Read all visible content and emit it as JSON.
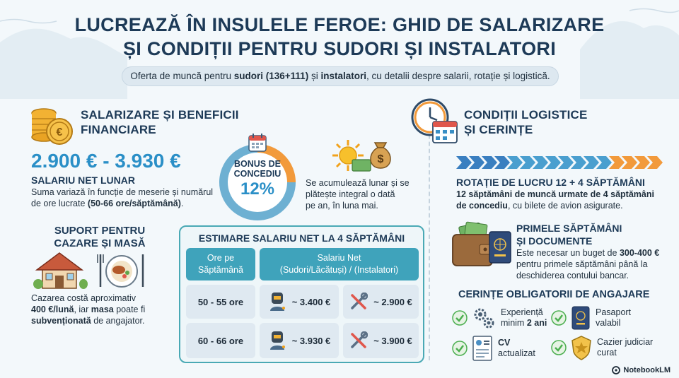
{
  "header": {
    "title_line1": "LUCREAZĂ ÎN INSULELE FEROE: GHID DE SALARIZARE",
    "title_line2": "ȘI CONDIȚII PENTRU SUDORI ȘI INSTALATORI",
    "subtitle_pre": "Oferta de muncă pentru ",
    "subtitle_b1": "sudori (136+111)",
    "subtitle_mid": " și ",
    "subtitle_b2": "instalatori",
    "subtitle_post": ", cu detalii despre salarii, rotație și logistică."
  },
  "salary": {
    "heading_line1": "SALARIZARE ȘI BENEFICII",
    "heading_line2": "FINANCIARE",
    "range": "2.900 € - 3.930 €",
    "label": "SALARIU NET LUNAR",
    "desc_line1": "Suma variază în funcție de meserie și numărul",
    "desc_line2_pre": "de ore lucrate ",
    "desc_line2_b": "(50-66 ore/săptămână)",
    "desc_line2_post": "."
  },
  "bonus": {
    "label_line1": "BONUS DE",
    "label_line2": "CONCEDIU",
    "percent": "12%",
    "percent_value": 12,
    "desc_line1": "Se acumulează lunar și se",
    "desc_line2": "plătește integral o dată",
    "desc_line3": "pe an, în luna mai."
  },
  "housing": {
    "heading_line1": "SUPORT PENTRU",
    "heading_line2": "CAZARE ȘI MASĂ",
    "desc_line1": "Cazarea costă aproximativ",
    "desc_line2_b": "400 €/lună",
    "desc_line2_mid": ", iar ",
    "desc_line2_b2": "masa",
    "desc_line2_post": " poate fi",
    "desc_line3_b": "subvenționată",
    "desc_line3_post": " de angajator."
  },
  "table": {
    "title": "ESTIMARE SALARIU NET LA 4 SĂPTĂMÂNI",
    "col1_line1": "Ore pe",
    "col1_line2": "Săptămână",
    "col2_line1": "Salariu Net",
    "col2_line2": "(Sudori/Lăcătuși) / (Instalatori)",
    "rows": [
      {
        "hours": "50 - 55 ore",
        "welder": "~ 3.400 €",
        "plumber": "~ 2.900 €"
      },
      {
        "hours": "60 - 66 ore",
        "welder": "~ 3.930 €",
        "plumber": "~ 3.900 €"
      }
    ]
  },
  "logistics": {
    "heading_line1": "CONDIȚII LOGISTICE",
    "heading_line2": "ȘI CERINȚE",
    "rotation_title": "ROTAȚIE DE LUCRU 12 + 4 SĂPTĂMÂNI",
    "rotation_line1_b": "12 săptămâni de muncă urmate de 4 săptămâni",
    "rotation_line2_b": "de concediu",
    "rotation_line2_post": ", cu bilete de avion asigurate.",
    "work_weeks": 12,
    "leave_weeks": 4,
    "first_weeks_line1": "PRIMELE SĂPTĂMÂNI",
    "first_weeks_line2": "ȘI DOCUMENTE",
    "first_desc_line1_pre": "Este necesar un buget de ",
    "first_desc_line1_b": "300-400 €",
    "first_desc_line2": "pentru primele săptămâni până la",
    "first_desc_line3": "deschiderea contului bancar."
  },
  "requirements": {
    "title": "CERINȚE OBLIGATORII DE ANGAJARE",
    "items": [
      {
        "line1": "Experiență",
        "line2_pre": "minim ",
        "line2_b": "2 ani"
      },
      {
        "line1": "Pasaport",
        "line2_pre": "valabil",
        "line2_b": ""
      },
      {
        "line1": "CV",
        "line2_pre": "actualizat",
        "line2_b": ""
      },
      {
        "line1": "Cazier judiciar",
        "line2_pre": "curat",
        "line2_b": ""
      }
    ]
  },
  "brand": {
    "name": "NotebookLM"
  },
  "colors": {
    "title": "#1d3a57",
    "accent_blue": "#2a8fc7",
    "teal": "#3fa3bb",
    "orange": "#f29a3b",
    "green_check": "#4caf50"
  },
  "icons": [
    "coins-icon",
    "calendar-icon",
    "sun-icon",
    "money-bag-icon",
    "house-icon",
    "meal-icon",
    "clock-icon",
    "welder-icon",
    "wrench-icon",
    "wallet-icon",
    "passport-icon",
    "gears-icon",
    "cv-icon",
    "police-badge-icon",
    "check-icon"
  ]
}
